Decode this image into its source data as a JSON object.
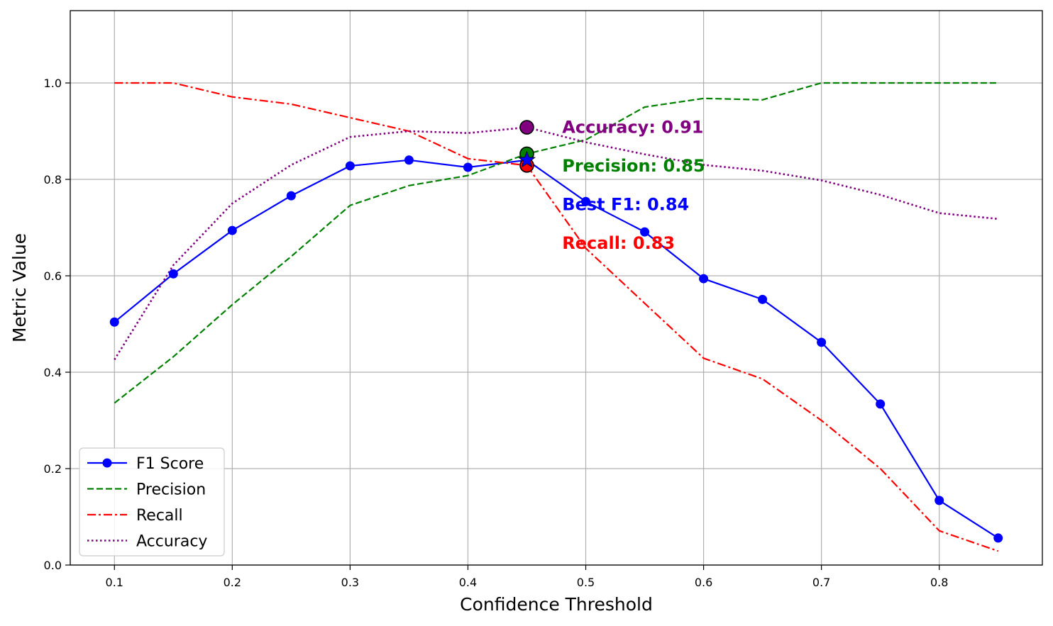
{
  "chart_data": {
    "type": "line",
    "title": "",
    "xlabel": "Confidence Threshold",
    "ylabel": "Metric Value",
    "xlim": [
      0.0625,
      0.8875
    ],
    "ylim": [
      0.0,
      1.15
    ],
    "grid": true,
    "x": [
      0.1,
      0.15,
      0.2,
      0.25,
      0.3,
      0.35,
      0.4,
      0.45,
      0.5,
      0.55,
      0.6,
      0.65,
      0.7,
      0.75,
      0.8,
      0.85
    ],
    "x_ticks": [
      "0.1",
      "0.2",
      "0.3",
      "0.4",
      "0.5",
      "0.6",
      "0.7",
      "0.8"
    ],
    "x_tick_values": [
      0.1,
      0.2,
      0.3,
      0.4,
      0.5,
      0.6,
      0.7,
      0.8
    ],
    "y_ticks": [
      "0.0",
      "0.2",
      "0.4",
      "0.6",
      "0.8",
      "1.0"
    ],
    "y_tick_values": [
      0.0,
      0.2,
      0.4,
      0.6,
      0.8,
      1.0
    ],
    "series": [
      {
        "name": "F1 Score",
        "color": "#0000ff",
        "style": "solid",
        "marker": "circle",
        "values": [
          0.504,
          0.604,
          0.694,
          0.766,
          0.828,
          0.84,
          0.825,
          0.84,
          0.754,
          0.691,
          0.594,
          0.551,
          0.462,
          0.334,
          0.134,
          0.056
        ]
      },
      {
        "name": "Precision",
        "color": "#008000",
        "style": "dashed",
        "marker": "none",
        "values": [
          0.336,
          0.432,
          0.54,
          0.64,
          0.746,
          0.787,
          0.808,
          0.853,
          0.882,
          0.95,
          0.968,
          0.965,
          1.0,
          1.0,
          1.0,
          1.0
        ]
      },
      {
        "name": "Recall",
        "color": "#ff0000",
        "style": "dashdot",
        "marker": "none",
        "values": [
          1.0,
          1.0,
          0.971,
          0.956,
          0.928,
          0.9,
          0.843,
          0.829,
          0.657,
          0.543,
          0.429,
          0.386,
          0.3,
          0.2,
          0.071,
          0.029
        ]
      },
      {
        "name": "Accuracy",
        "color": "#800080",
        "style": "dotted",
        "marker": "none",
        "values": [
          0.426,
          0.622,
          0.75,
          0.83,
          0.888,
          0.9,
          0.896,
          0.908,
          0.877,
          0.852,
          0.83,
          0.818,
          0.798,
          0.768,
          0.73,
          0.718
        ]
      }
    ],
    "best_point": {
      "x": 0.45,
      "markers": [
        {
          "metric": "Accuracy",
          "value": 0.908,
          "color": "#800080",
          "shape": "circle"
        },
        {
          "metric": "Precision",
          "value": 0.853,
          "color": "#008000",
          "shape": "circle"
        },
        {
          "metric": "Recall",
          "value": 0.829,
          "color": "#ff0000",
          "shape": "circle"
        },
        {
          "metric": "F1",
          "value": 0.84,
          "color": "#0000ff",
          "shape": "star"
        }
      ]
    },
    "annotations": [
      {
        "text": "Accuracy: 0.91",
        "color": "#800080",
        "x": 0.48,
        "y": 0.908
      },
      {
        "text": "Precision: 0.85",
        "color": "#008000",
        "x": 0.48,
        "y": 0.828
      },
      {
        "text": "Best F1: 0.84",
        "color": "#0000ff",
        "x": 0.48,
        "y": 0.748
      },
      {
        "text": "Recall: 0.83",
        "color": "#ff0000",
        "x": 0.48,
        "y": 0.668
      }
    ],
    "legend": {
      "position": "lower-left",
      "entries": [
        "F1 Score",
        "Precision",
        "Recall",
        "Accuracy"
      ]
    }
  }
}
